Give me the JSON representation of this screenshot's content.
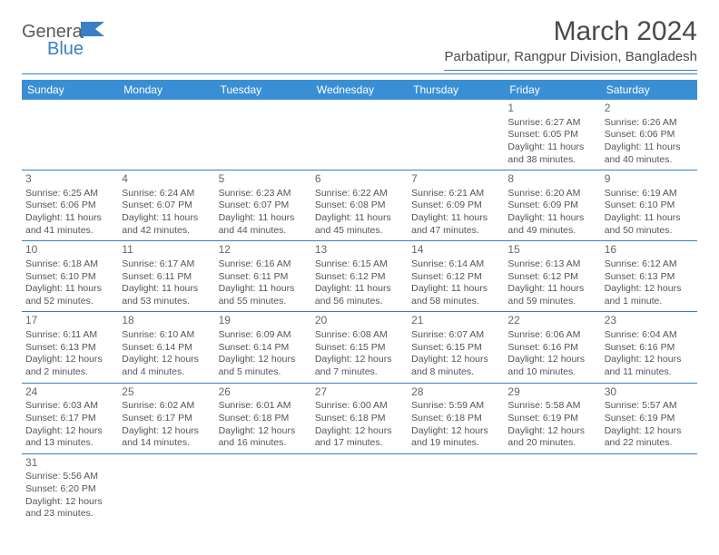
{
  "logo": {
    "general": "Genera",
    "blue": "Blue"
  },
  "title": "March 2024",
  "subtitle": "Parbatipur, Rangpur Division, Bangladesh",
  "colors": {
    "header_bar": "#3a8fd4",
    "divider": "#3a7fc4",
    "text": "#555555",
    "title_text": "#4a4a4a",
    "logo_blue": "#3a7fc4",
    "logo_gray": "#5a5a5a",
    "background": "#ffffff"
  },
  "daysOfWeek": [
    "Sunday",
    "Monday",
    "Tuesday",
    "Wednesday",
    "Thursday",
    "Friday",
    "Saturday"
  ],
  "weeks": [
    [
      {
        "empty": true
      },
      {
        "empty": true
      },
      {
        "empty": true
      },
      {
        "empty": true
      },
      {
        "empty": true
      },
      {
        "num": "1",
        "sunrise": "Sunrise: 6:27 AM",
        "sunset": "Sunset: 6:05 PM",
        "day1": "Daylight: 11 hours",
        "day2": "and 38 minutes."
      },
      {
        "num": "2",
        "sunrise": "Sunrise: 6:26 AM",
        "sunset": "Sunset: 6:06 PM",
        "day1": "Daylight: 11 hours",
        "day2": "and 40 minutes."
      }
    ],
    [
      {
        "num": "3",
        "sunrise": "Sunrise: 6:25 AM",
        "sunset": "Sunset: 6:06 PM",
        "day1": "Daylight: 11 hours",
        "day2": "and 41 minutes."
      },
      {
        "num": "4",
        "sunrise": "Sunrise: 6:24 AM",
        "sunset": "Sunset: 6:07 PM",
        "day1": "Daylight: 11 hours",
        "day2": "and 42 minutes."
      },
      {
        "num": "5",
        "sunrise": "Sunrise: 6:23 AM",
        "sunset": "Sunset: 6:07 PM",
        "day1": "Daylight: 11 hours",
        "day2": "and 44 minutes."
      },
      {
        "num": "6",
        "sunrise": "Sunrise: 6:22 AM",
        "sunset": "Sunset: 6:08 PM",
        "day1": "Daylight: 11 hours",
        "day2": "and 45 minutes."
      },
      {
        "num": "7",
        "sunrise": "Sunrise: 6:21 AM",
        "sunset": "Sunset: 6:09 PM",
        "day1": "Daylight: 11 hours",
        "day2": "and 47 minutes."
      },
      {
        "num": "8",
        "sunrise": "Sunrise: 6:20 AM",
        "sunset": "Sunset: 6:09 PM",
        "day1": "Daylight: 11 hours",
        "day2": "and 49 minutes."
      },
      {
        "num": "9",
        "sunrise": "Sunrise: 6:19 AM",
        "sunset": "Sunset: 6:10 PM",
        "day1": "Daylight: 11 hours",
        "day2": "and 50 minutes."
      }
    ],
    [
      {
        "num": "10",
        "sunrise": "Sunrise: 6:18 AM",
        "sunset": "Sunset: 6:10 PM",
        "day1": "Daylight: 11 hours",
        "day2": "and 52 minutes."
      },
      {
        "num": "11",
        "sunrise": "Sunrise: 6:17 AM",
        "sunset": "Sunset: 6:11 PM",
        "day1": "Daylight: 11 hours",
        "day2": "and 53 minutes."
      },
      {
        "num": "12",
        "sunrise": "Sunrise: 6:16 AM",
        "sunset": "Sunset: 6:11 PM",
        "day1": "Daylight: 11 hours",
        "day2": "and 55 minutes."
      },
      {
        "num": "13",
        "sunrise": "Sunrise: 6:15 AM",
        "sunset": "Sunset: 6:12 PM",
        "day1": "Daylight: 11 hours",
        "day2": "and 56 minutes."
      },
      {
        "num": "14",
        "sunrise": "Sunrise: 6:14 AM",
        "sunset": "Sunset: 6:12 PM",
        "day1": "Daylight: 11 hours",
        "day2": "and 58 minutes."
      },
      {
        "num": "15",
        "sunrise": "Sunrise: 6:13 AM",
        "sunset": "Sunset: 6:12 PM",
        "day1": "Daylight: 11 hours",
        "day2": "and 59 minutes."
      },
      {
        "num": "16",
        "sunrise": "Sunrise: 6:12 AM",
        "sunset": "Sunset: 6:13 PM",
        "day1": "Daylight: 12 hours",
        "day2": "and 1 minute."
      }
    ],
    [
      {
        "num": "17",
        "sunrise": "Sunrise: 6:11 AM",
        "sunset": "Sunset: 6:13 PM",
        "day1": "Daylight: 12 hours",
        "day2": "and 2 minutes."
      },
      {
        "num": "18",
        "sunrise": "Sunrise: 6:10 AM",
        "sunset": "Sunset: 6:14 PM",
        "day1": "Daylight: 12 hours",
        "day2": "and 4 minutes."
      },
      {
        "num": "19",
        "sunrise": "Sunrise: 6:09 AM",
        "sunset": "Sunset: 6:14 PM",
        "day1": "Daylight: 12 hours",
        "day2": "and 5 minutes."
      },
      {
        "num": "20",
        "sunrise": "Sunrise: 6:08 AM",
        "sunset": "Sunset: 6:15 PM",
        "day1": "Daylight: 12 hours",
        "day2": "and 7 minutes."
      },
      {
        "num": "21",
        "sunrise": "Sunrise: 6:07 AM",
        "sunset": "Sunset: 6:15 PM",
        "day1": "Daylight: 12 hours",
        "day2": "and 8 minutes."
      },
      {
        "num": "22",
        "sunrise": "Sunrise: 6:06 AM",
        "sunset": "Sunset: 6:16 PM",
        "day1": "Daylight: 12 hours",
        "day2": "and 10 minutes."
      },
      {
        "num": "23",
        "sunrise": "Sunrise: 6:04 AM",
        "sunset": "Sunset: 6:16 PM",
        "day1": "Daylight: 12 hours",
        "day2": "and 11 minutes."
      }
    ],
    [
      {
        "num": "24",
        "sunrise": "Sunrise: 6:03 AM",
        "sunset": "Sunset: 6:17 PM",
        "day1": "Daylight: 12 hours",
        "day2": "and 13 minutes."
      },
      {
        "num": "25",
        "sunrise": "Sunrise: 6:02 AM",
        "sunset": "Sunset: 6:17 PM",
        "day1": "Daylight: 12 hours",
        "day2": "and 14 minutes."
      },
      {
        "num": "26",
        "sunrise": "Sunrise: 6:01 AM",
        "sunset": "Sunset: 6:18 PM",
        "day1": "Daylight: 12 hours",
        "day2": "and 16 minutes."
      },
      {
        "num": "27",
        "sunrise": "Sunrise: 6:00 AM",
        "sunset": "Sunset: 6:18 PM",
        "day1": "Daylight: 12 hours",
        "day2": "and 17 minutes."
      },
      {
        "num": "28",
        "sunrise": "Sunrise: 5:59 AM",
        "sunset": "Sunset: 6:18 PM",
        "day1": "Daylight: 12 hours",
        "day2": "and 19 minutes."
      },
      {
        "num": "29",
        "sunrise": "Sunrise: 5:58 AM",
        "sunset": "Sunset: 6:19 PM",
        "day1": "Daylight: 12 hours",
        "day2": "and 20 minutes."
      },
      {
        "num": "30",
        "sunrise": "Sunrise: 5:57 AM",
        "sunset": "Sunset: 6:19 PM",
        "day1": "Daylight: 12 hours",
        "day2": "and 22 minutes."
      }
    ],
    [
      {
        "num": "31",
        "sunrise": "Sunrise: 5:56 AM",
        "sunset": "Sunset: 6:20 PM",
        "day1": "Daylight: 12 hours",
        "day2": "and 23 minutes."
      },
      {
        "empty": true
      },
      {
        "empty": true
      },
      {
        "empty": true
      },
      {
        "empty": true
      },
      {
        "empty": true
      },
      {
        "empty": true
      }
    ]
  ]
}
